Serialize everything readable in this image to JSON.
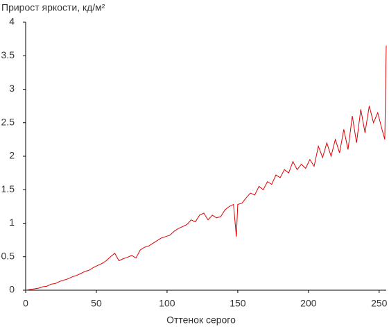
{
  "chart_data": {
    "type": "line",
    "title": "Прирост яркости, кд/м²",
    "x_label": "Оттенок серого",
    "x": [
      0,
      3,
      6,
      9,
      12,
      15,
      18,
      21,
      24,
      27,
      30,
      33,
      36,
      39,
      42,
      45,
      48,
      51,
      54,
      57,
      60,
      63,
      66,
      69,
      72,
      75,
      78,
      81,
      84,
      87,
      90,
      93,
      96,
      99,
      102,
      105,
      108,
      111,
      114,
      117,
      120,
      123,
      126,
      129,
      132,
      135,
      138,
      141,
      144,
      147,
      149,
      150,
      153,
      156,
      159,
      162,
      165,
      168,
      171,
      174,
      177,
      180,
      183,
      186,
      189,
      192,
      195,
      198,
      201,
      204,
      207,
      210,
      213,
      216,
      219,
      222,
      225,
      228,
      231,
      234,
      237,
      240,
      243,
      246,
      249,
      252,
      254,
      255
    ],
    "series": [
      {
        "name": "Прирост яркости",
        "color": "#dd0000",
        "values": [
          0,
          0.01,
          0.02,
          0.03,
          0.05,
          0.06,
          0.09,
          0.1,
          0.13,
          0.15,
          0.17,
          0.2,
          0.22,
          0.25,
          0.28,
          0.3,
          0.34,
          0.37,
          0.4,
          0.44,
          0.5,
          0.55,
          0.44,
          0.47,
          0.49,
          0.52,
          0.48,
          0.6,
          0.64,
          0.66,
          0.7,
          0.74,
          0.78,
          0.8,
          0.82,
          0.88,
          0.92,
          0.95,
          0.98,
          1.05,
          1.02,
          1.12,
          1.15,
          1.05,
          1.12,
          1.08,
          1.1,
          1.2,
          1.25,
          1.28,
          0.8,
          1.28,
          1.3,
          1.38,
          1.45,
          1.42,
          1.55,
          1.5,
          1.62,
          1.58,
          1.72,
          1.68,
          1.8,
          1.75,
          1.92,
          1.8,
          1.88,
          1.82,
          1.95,
          1.85,
          2.15,
          1.98,
          2.2,
          2.0,
          2.25,
          2.05,
          2.4,
          2.1,
          2.6,
          2.2,
          2.7,
          2.35,
          2.75,
          2.5,
          2.65,
          2.4,
          2.25,
          3.65
        ]
      }
    ],
    "xlim": [
      0,
      255
    ],
    "ylim": [
      0,
      4
    ],
    "xticks": [
      0,
      50,
      100,
      150,
      200,
      250
    ],
    "yticks": [
      0,
      0.5,
      1,
      1.5,
      2,
      2.5,
      3,
      3.5,
      4
    ]
  }
}
